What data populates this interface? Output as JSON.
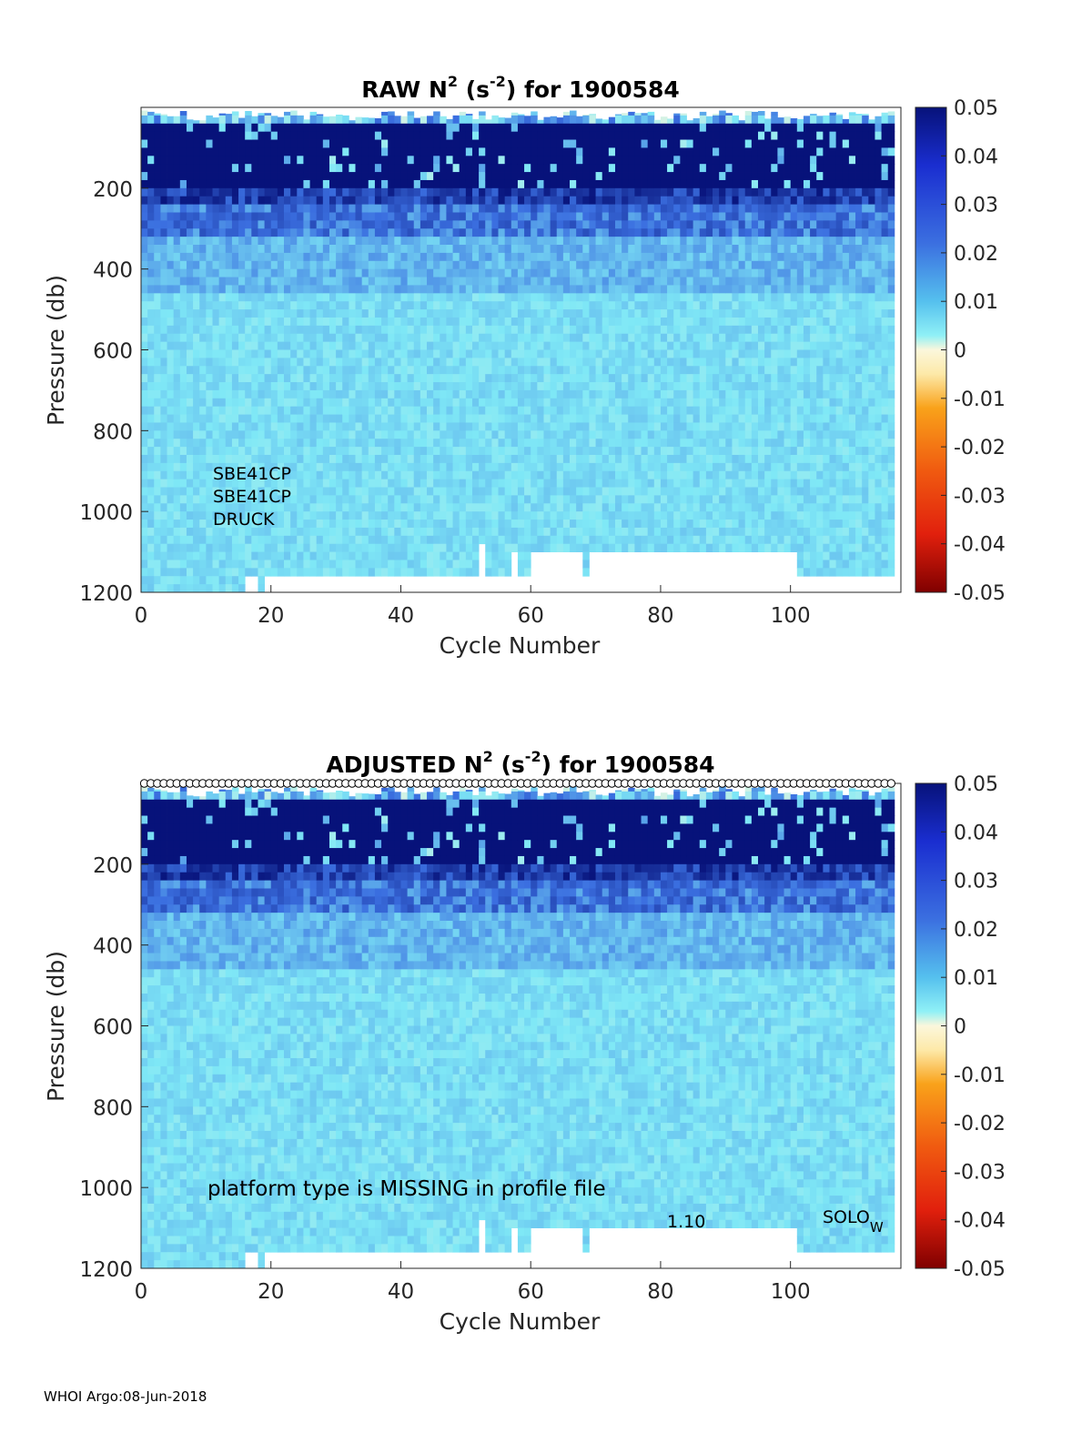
{
  "footer": "WHOI Argo:08-Jun-2018",
  "colorbar": {
    "ticks": [
      "0.05",
      "0.04",
      "0.03",
      "0.02",
      "0.01",
      "0",
      "-0.01",
      "-0.02",
      "-0.03",
      "-0.04",
      "-0.05"
    ],
    "range": [
      -0.05,
      0.05
    ]
  },
  "colors": {
    "deep_blue": "#07127a",
    "mid_blue": "#3b6fe0",
    "cyan": "#7fe8f6",
    "pale": "#fbf7dc",
    "orange": "#f9a21a",
    "red": "#e1200d",
    "dark_red": "#800000"
  },
  "chart_data": [
    {
      "type": "heatmap",
      "title_main": "RAW N",
      "title_sup1": "2",
      "title_mid": " (s",
      "title_sup2": "-2",
      "title_end": ") for 1900584",
      "xlabel": "Cycle Number",
      "ylabel": "Pressure (db)",
      "xlim": [
        0,
        117
      ],
      "ylim": [
        0,
        1200
      ],
      "y_reversed": true,
      "xticks": [
        "0",
        "20",
        "40",
        "60",
        "80",
        "100"
      ],
      "yticks": [
        "200",
        "400",
        "600",
        "800",
        "1000",
        "1200"
      ],
      "annotations": [
        "SBE41CP",
        "SBE41CP",
        "DRUCK"
      ],
      "depth_profile": [
        {
          "p_max": 40,
          "n2": 0.005
        },
        {
          "p_max": 200,
          "n2": 0.05
        },
        {
          "p_max": 240,
          "n2": 0.035
        },
        {
          "p_max": 320,
          "n2": 0.022
        },
        {
          "p_max": 450,
          "n2": 0.013
        },
        {
          "p_max": 1200,
          "n2": 0.009
        }
      ]
    },
    {
      "type": "heatmap",
      "title_main": "ADJUSTED N",
      "title_sup1": "2",
      "title_mid": " (s",
      "title_sup2": "-2",
      "title_end": ") for 1900584",
      "xlabel": "Cycle Number",
      "ylabel": "Pressure (db)",
      "xlim": [
        0,
        117
      ],
      "ylim": [
        0,
        1200
      ],
      "y_reversed": true,
      "xticks": [
        "0",
        "20",
        "40",
        "60",
        "80",
        "100"
      ],
      "yticks": [
        "200",
        "400",
        "600",
        "800",
        "1000",
        "1200"
      ],
      "annotations": [
        "platform type is MISSING in profile file",
        "1.10",
        "SOLO",
        "W"
      ],
      "depth_profile": [
        {
          "p_max": 40,
          "n2": 0.005
        },
        {
          "p_max": 200,
          "n2": 0.05
        },
        {
          "p_max": 240,
          "n2": 0.035
        },
        {
          "p_max": 320,
          "n2": 0.022
        },
        {
          "p_max": 450,
          "n2": 0.013
        },
        {
          "p_max": 1200,
          "n2": 0.009
        }
      ]
    }
  ]
}
